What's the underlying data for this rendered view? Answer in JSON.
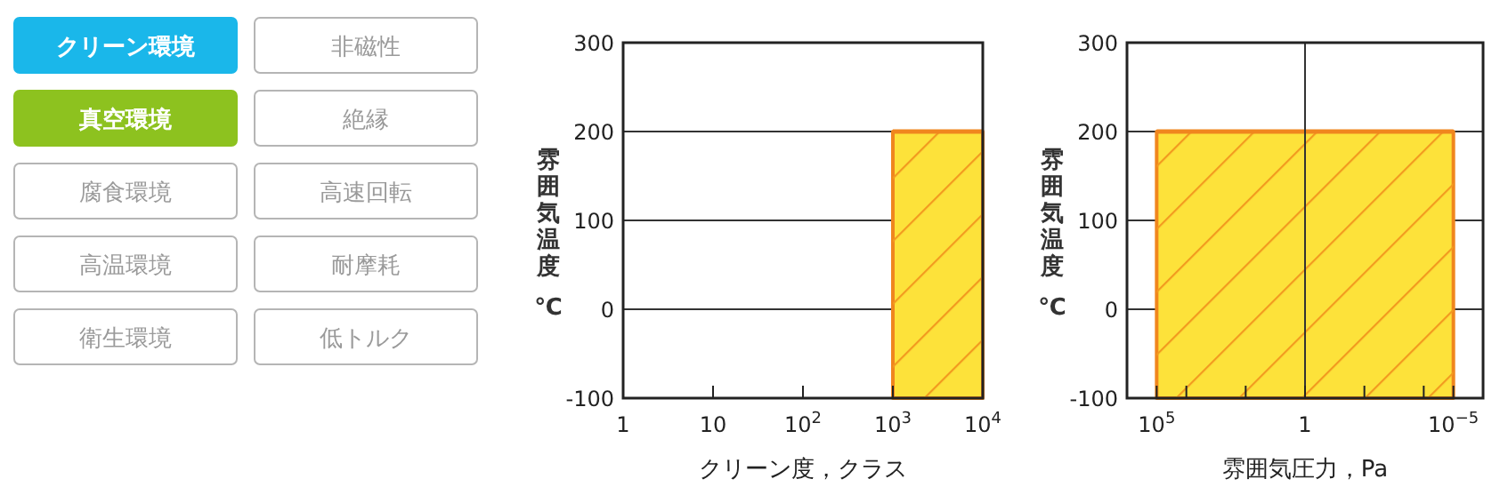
{
  "chart_data": [
    {
      "type": "other",
      "categories": [
        "クリーン環境",
        "非磁性",
        "真空環境",
        "絶縁",
        "腐食環境",
        "高速回転",
        "高温環境",
        "耐摩耗",
        "衛生環境",
        "低トルク"
      ],
      "colors": [
        "#1ab7ea",
        "#ffffff",
        "#8dc21f",
        "#ffffff",
        "#ffffff",
        "#ffffff",
        "#ffffff",
        "#ffffff",
        "#ffffff",
        "#ffffff"
      ]
    },
    {
      "type": "line",
      "xlabel": "クリーン度，クラス",
      "ylabel": "雰囲気温度 ℃",
      "log": "x",
      "xlim": [
        1,
        10000
      ],
      "xticks": [
        {
          "value": 1,
          "label": "1"
        },
        {
          "value": 10,
          "label": "10"
        },
        {
          "value": 100,
          "label": "10$^{2}$"
        },
        {
          "value": 1000,
          "label": "10$^{3}$"
        },
        {
          "value": 10000,
          "label": "10$^{4}$"
        }
      ],
      "ylim": [
        -100,
        300
      ],
      "yticks": [
        -100,
        0,
        100,
        200,
        300
      ],
      "grid": "y",
      "series": [
        {
          "color": "#f0861e",
          "x": [
            1000,
            10000
          ],
          "values": [
            200,
            200
          ],
          "lower": [
            -100,
            -100
          ],
          "upper": [
            200,
            200
          ]
        }
      ]
    },
    {
      "type": "line",
      "xlabel": "雰囲気圧力，Pa",
      "ylabel": "雰囲気温度 ℃",
      "log": "x",
      "xlim": [
        1000000,
        1e-06
      ],
      "xticks": [
        {
          "value": 100000,
          "label": "10$^{5}$"
        },
        {
          "value": 10000,
          "label": null
        },
        {
          "value": 100,
          "label": null
        },
        {
          "value": 1,
          "label": "1"
        },
        {
          "value": 0.01,
          "label": null
        },
        {
          "value": 0.0001,
          "label": null
        },
        {
          "value": 1e-05,
          "label": "10$^{−5}$"
        }
      ],
      "ylim": [
        -100,
        300
      ],
      "yticks": [
        -100,
        0,
        100,
        200,
        300
      ],
      "grid": "y",
      "ref_lines": [
        {
          "axis": "x",
          "value": 1
        }
      ],
      "series": [
        {
          "color": "#f0861e",
          "x": [
            100000,
            1e-05
          ],
          "values": [
            200,
            200
          ],
          "lower": [
            -100,
            -100
          ],
          "upper": [
            200,
            200
          ]
        }
      ]
    }
  ]
}
